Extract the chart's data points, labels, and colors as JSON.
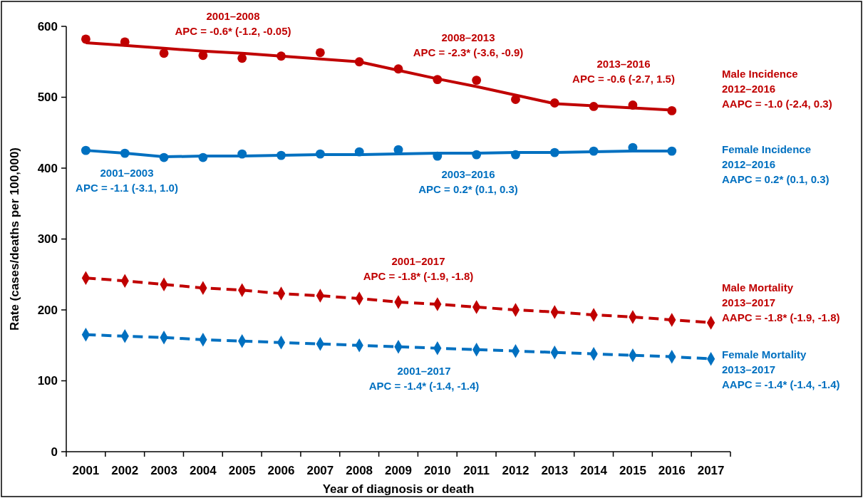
{
  "chart_data": {
    "type": "line",
    "xlabel": "Year of diagnosis or death",
    "ylabel": "Rate (cases/deaths per 100,000)",
    "categories": [
      "2001",
      "2002",
      "2003",
      "2004",
      "2005",
      "2006",
      "2007",
      "2008",
      "2009",
      "2010",
      "2011",
      "2012",
      "2013",
      "2014",
      "2015",
      "2016",
      "2017"
    ],
    "ylim": [
      0,
      600
    ],
    "yticks": [
      0,
      100,
      200,
      300,
      400,
      500,
      600
    ],
    "grid": false,
    "series": [
      {
        "type": "scatter",
        "marker": "circle",
        "color": "#c00000",
        "values": [
          582,
          578,
          562,
          559,
          555,
          558,
          563,
          550,
          540,
          525,
          524,
          497,
          492,
          487,
          489,
          481,
          null
        ]
      },
      {
        "type": "line",
        "marker": "none",
        "line_style": "solid",
        "color": "#c00000",
        "values": [
          577,
          573,
          569,
          565,
          562,
          558,
          554,
          550,
          538,
          526,
          515,
          503,
          491,
          488,
          485,
          482,
          null
        ]
      },
      {
        "type": "scatter",
        "marker": "circle",
        "color": "#0070c0",
        "values": [
          425,
          421,
          415,
          415,
          420,
          418,
          420,
          423,
          426,
          417,
          419,
          419,
          422,
          424,
          429,
          424,
          null
        ]
      },
      {
        "type": "line",
        "marker": "none",
        "line_style": "solid",
        "color": "#0070c0",
        "values": [
          425,
          421,
          416,
          417,
          417,
          418,
          419,
          419,
          420,
          421,
          421,
          422,
          422,
          423,
          424,
          424,
          null
        ]
      },
      {
        "type": "line",
        "marker": "diamond",
        "line_style": "dashed",
        "color": "#c00000",
        "values": [
          245,
          241,
          236,
          231,
          228,
          223,
          220,
          216,
          211,
          208,
          204,
          200,
          197,
          193,
          190,
          186,
          182
        ]
      },
      {
        "type": "line",
        "marker": "diamond",
        "line_style": "dashed",
        "color": "#0070c0",
        "values": [
          165,
          163,
          161,
          158,
          156,
          154,
          152,
          150,
          148,
          146,
          144,
          142,
          140,
          138,
          136,
          134,
          131
        ]
      }
    ],
    "annotations": [
      "2001–2008\nAPC = -0.6* (-1.2, -0.05)",
      "2008–2013\nAPC = -2.3* (-3.6, -0.9)",
      "2013–2016\nAPC = -0.6 (-2.7, 1.5)",
      "2001–2003\nAPC = -1.1 (-3.1, 1.0)",
      "2003–2016\nAPC = 0.2* (0.1, 0.3)",
      "2001–2017\nAPC = -1.8* (-1.9, -1.8)",
      "2001–2017\nAPC = -1.4* (-1.4, -1.4)",
      "Male Incidence\n2012–2016\nAAPC = -1.0 (-2.4, 0.3)",
      "Female Incidence\n2012–2016\nAAPC = 0.2* (0.1, 0.3)",
      "Male Mortality\n2013–2017\nAAPC = -1.8* (-1.9, -1.8)",
      "Female Mortality\n2013–2017\nAAPC = -1.4* (-1.4, -1.4)"
    ]
  }
}
